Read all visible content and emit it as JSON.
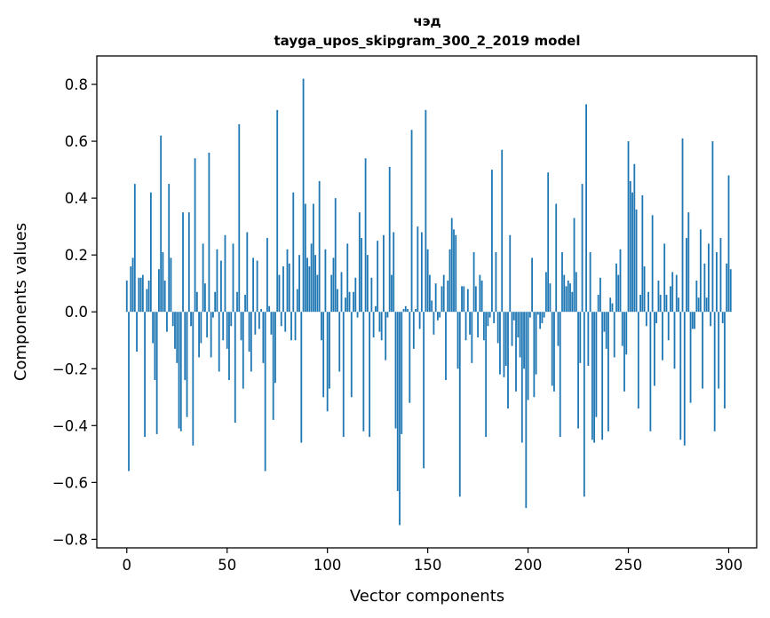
{
  "chart_data": {
    "type": "bar",
    "title": "чэд",
    "subtitle": "tayga_upos_skipgram_300_2_2019 model",
    "xlabel": "Vector components",
    "ylabel": "Components values",
    "xlim": [
      -14.95,
      313.95
    ],
    "ylim": [
      -0.83,
      0.9
    ],
    "xticks": [
      0,
      50,
      100,
      150,
      200,
      250,
      300
    ],
    "xtick_labels": [
      "0",
      "50",
      "100",
      "150",
      "200",
      "250",
      "300"
    ],
    "yticks": [
      -0.8,
      -0.6,
      -0.4,
      -0.2,
      0.0,
      0.2,
      0.4,
      0.6,
      0.8
    ],
    "ytick_labels": [
      "−0.8",
      "−0.6",
      "−0.4",
      "−0.2",
      "0.0",
      "0.2",
      "0.4",
      "0.6",
      "0.8"
    ],
    "grid": false,
    "bar_color": "#1f77b4",
    "values": [
      0.11,
      -0.56,
      0.16,
      0.19,
      0.45,
      -0.14,
      0.12,
      0.12,
      0.13,
      -0.44,
      0.08,
      0.11,
      0.42,
      -0.11,
      -0.24,
      -0.43,
      0.15,
      0.62,
      0.21,
      0.11,
      -0.07,
      0.45,
      0.19,
      -0.05,
      -0.13,
      -0.18,
      -0.41,
      -0.42,
      0.35,
      -0.24,
      -0.37,
      0.35,
      -0.05,
      -0.47,
      0.54,
      0.07,
      -0.16,
      -0.11,
      0.24,
      0.1,
      -0.09,
      0.56,
      -0.16,
      -0.02,
      0.07,
      0.22,
      -0.21,
      0.18,
      -0.1,
      0.27,
      -0.13,
      -0.24,
      -0.05,
      0.24,
      -0.39,
      0.07,
      0.66,
      -0.1,
      -0.27,
      0.06,
      0.28,
      -0.14,
      -0.21,
      0.19,
      -0.08,
      0.18,
      -0.06,
      0.01,
      -0.18,
      -0.56,
      0.26,
      0.02,
      -0.08,
      -0.38,
      -0.25,
      0.71,
      0.13,
      -0.05,
      0.16,
      -0.07,
      0.22,
      0.17,
      -0.1,
      0.42,
      -0.1,
      0.08,
      0.2,
      -0.46,
      0.82,
      0.38,
      0.19,
      0.16,
      0.24,
      0.38,
      0.2,
      0.13,
      0.46,
      -0.1,
      -0.3,
      0.22,
      -0.35,
      -0.27,
      0.13,
      0.19,
      0.4,
      0.08,
      -0.21,
      0.14,
      -0.44,
      0.05,
      0.24,
      0.07,
      -0.3,
      0.07,
      0.12,
      -0.02,
      0.35,
      0.26,
      -0.42,
      0.54,
      0.2,
      -0.44,
      0.12,
      -0.09,
      0.02,
      0.25,
      -0.07,
      -0.1,
      0.27,
      -0.17,
      -0.02,
      0.51,
      0.13,
      0.28,
      -0.41,
      -0.63,
      -0.75,
      -0.43,
      0.01,
      0.02,
      0.01,
      -0.32,
      0.64,
      -0.13,
      0.01,
      0.3,
      -0.06,
      0.28,
      -0.55,
      0.71,
      0.22,
      0.13,
      0.04,
      -0.08,
      0.1,
      -0.03,
      -0.02,
      0.09,
      0.13,
      -0.24,
      0.11,
      0.22,
      0.33,
      0.29,
      0.27,
      -0.2,
      -0.65,
      0.09,
      0.09,
      -0.1,
      0.08,
      -0.08,
      -0.18,
      0.21,
      0.09,
      -0.09,
      0.13,
      0.11,
      -0.1,
      -0.44,
      -0.05,
      -0.02,
      0.5,
      -0.04,
      0.21,
      -0.11,
      -0.22,
      0.57,
      -0.23,
      -0.19,
      -0.34,
      0.27,
      -0.12,
      -0.03,
      -0.28,
      -0.09,
      -0.16,
      -0.46,
      -0.2,
      -0.69,
      -0.31,
      -0.02,
      0.19,
      -0.3,
      -0.22,
      -0.01,
      -0.06,
      -0.04,
      -0.02,
      0.14,
      0.49,
      0.1,
      -0.26,
      -0.28,
      0.38,
      -0.12,
      -0.44,
      0.21,
      0.13,
      0.09,
      0.11,
      0.1,
      0.07,
      0.33,
      0.14,
      -0.41,
      -0.18,
      0.45,
      -0.65,
      0.73,
      -0.19,
      0.21,
      -0.45,
      -0.46,
      -0.37,
      0.06,
      0.12,
      -0.45,
      -0.07,
      -0.13,
      -0.42,
      0.05,
      0.03,
      -0.16,
      0.17,
      0.13,
      0.22,
      -0.12,
      -0.28,
      -0.15,
      0.6,
      0.46,
      0.42,
      0.52,
      0.36,
      -0.34,
      0.06,
      0.41,
      0.16,
      -0.05,
      0.07,
      -0.42,
      0.34,
      -0.26,
      -0.04,
      0.11,
      0.06,
      -0.17,
      0.24,
      0.06,
      -0.1,
      0.09,
      0.14,
      -0.2,
      0.13,
      0.05,
      -0.45,
      0.61,
      -0.47,
      0.26,
      0.35,
      -0.32,
      -0.06,
      -0.06,
      0.11,
      0.05,
      0.29,
      -0.27,
      0.17,
      0.05,
      0.24,
      -0.05,
      0.6,
      -0.42,
      0.21,
      -0.27,
      0.26,
      -0.04,
      -0.34,
      0.17,
      0.48,
      0.15
    ]
  }
}
